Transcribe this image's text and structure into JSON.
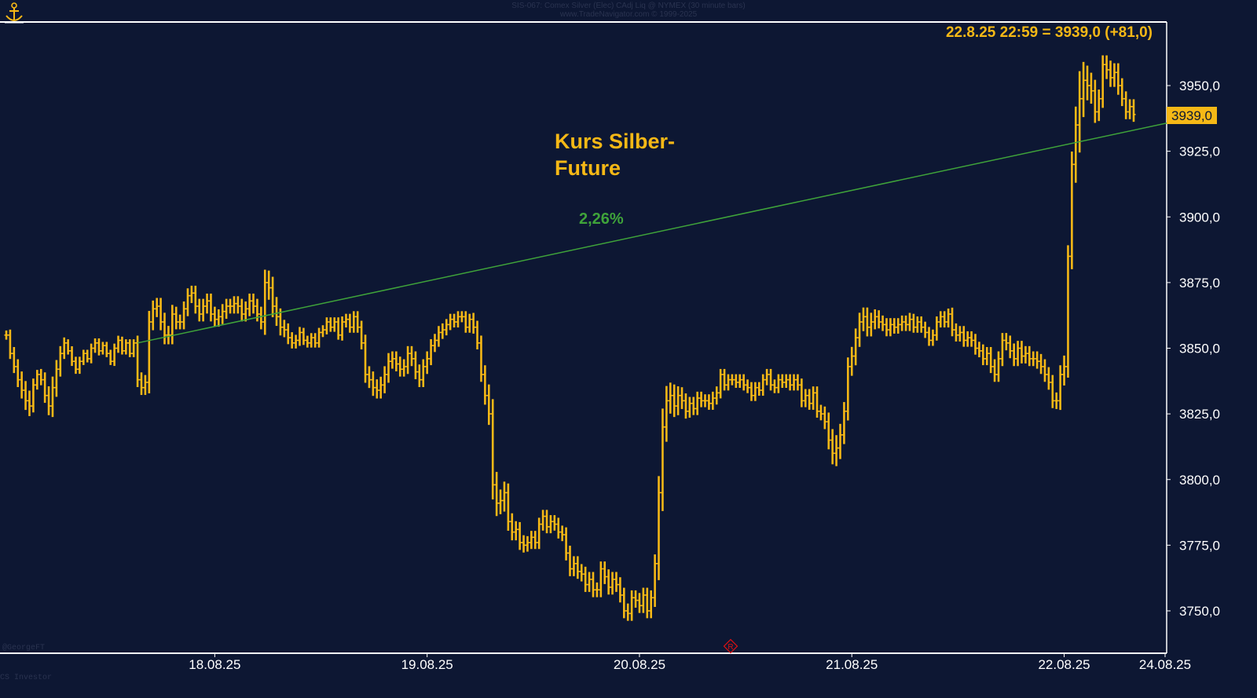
{
  "header": {
    "line1": "SIS-067: Comex Silver (Elec) CAdj Liq @ NYMEX (30 minute bars)",
    "line2": "www.TradeNavigator.com © 1999-2025"
  },
  "footer": {
    "left_top": "@GeorgeFT",
    "left_bottom": "CS Investor"
  },
  "colors": {
    "background": "#0d1733",
    "bars": "#f5b816",
    "trendline": "#3fa33a",
    "axis": "#ffffff",
    "label_box": "#f5b816"
  },
  "icons": [
    "anchor-logo-icon",
    "registered-mark-icon"
  ],
  "chart_data": {
    "type": "ohlc",
    "title": "Kurs Silber-Future",
    "title_lines": [
      "Kurs Silber-",
      "Future"
    ],
    "last_value_text": "22.8.25 22:59 = 3939,0 (+81,0)",
    "last_price_label": "3939,0",
    "trend_label": "2,26%",
    "trendline": {
      "from": {
        "bar": 34,
        "price": 3852
      },
      "to": {
        "bar": 311,
        "price": 3939
      }
    },
    "ylim": [
      3735,
      3975
    ],
    "yticks": [
      "3750,0",
      "3775,0",
      "3800,0",
      "3825,0",
      "3850,0",
      "3875,0",
      "3900,0",
      "3925,0",
      "3950,0"
    ],
    "ytick_values": [
      3750,
      3775,
      3800,
      3825,
      3850,
      3875,
      3900,
      3925,
      3950
    ],
    "xticks": [
      {
        "label": "18.08.25",
        "bar": 54
      },
      {
        "label": "19.08.25",
        "bar": 109
      },
      {
        "label": "20.08.25",
        "bar": 164
      },
      {
        "label": "21.08.25",
        "bar": 219
      },
      {
        "label": "22.08.25",
        "bar": 274
      },
      {
        "label": "24.08.25",
        "bar": 316
      }
    ],
    "xrange_bars": [
      0,
      318
    ],
    "grid": false,
    "series": [
      {
        "bar_width_bars": 1,
        "closes": [
          3855,
          3848,
          3843,
          3838,
          3834,
          3830,
          3828,
          3836,
          3840,
          3838,
          3832,
          3828,
          3835,
          3842,
          3848,
          3852,
          3849,
          3845,
          3842,
          3845,
          3848,
          3846,
          3850,
          3852,
          3849,
          3851,
          3848,
          3845,
          3850,
          3853,
          3849,
          3852,
          3848,
          3852,
          3838,
          3835,
          3837,
          3860,
          3865,
          3866,
          3860,
          3855,
          3855,
          3863,
          3860,
          3860,
          3865,
          3870,
          3871,
          3866,
          3863,
          3866,
          3868,
          3863,
          3861,
          3862,
          3864,
          3866,
          3866,
          3867,
          3866,
          3863,
          3865,
          3868,
          3866,
          3863,
          3860,
          3875,
          3873,
          3866,
          3862,
          3858,
          3857,
          3854,
          3852,
          3853,
          3856,
          3853,
          3852,
          3854,
          3852,
          3856,
          3857,
          3860,
          3858,
          3860,
          3855,
          3860,
          3861,
          3858,
          3862,
          3858,
          3852,
          3840,
          3838,
          3835,
          3834,
          3836,
          3840,
          3845,
          3846,
          3844,
          3842,
          3843,
          3848,
          3846,
          3841,
          3838,
          3843,
          3846,
          3851,
          3853,
          3856,
          3857,
          3859,
          3861,
          3860,
          3862,
          3862,
          3858,
          3861,
          3858,
          3852,
          3840,
          3832,
          3825,
          3798,
          3791,
          3792,
          3795,
          3784,
          3780,
          3781,
          3776,
          3775,
          3776,
          3778,
          3776,
          3783,
          3786,
          3782,
          3784,
          3783,
          3780,
          3779,
          3772,
          3766,
          3768,
          3765,
          3764,
          3760,
          3762,
          3758,
          3758,
          3766,
          3763,
          3759,
          3762,
          3760,
          3756,
          3750,
          3749,
          3755,
          3754,
          3752,
          3756,
          3750,
          3755,
          3768,
          3795,
          3820,
          3830,
          3832,
          3828,
          3832,
          3830,
          3826,
          3829,
          3827,
          3831,
          3830,
          3830,
          3829,
          3831,
          3833,
          3840,
          3836,
          3838,
          3838,
          3837,
          3838,
          3836,
          3835,
          3832,
          3835,
          3834,
          3838,
          3840,
          3836,
          3835,
          3838,
          3837,
          3838,
          3836,
          3838,
          3836,
          3830,
          3832,
          3829,
          3833,
          3826,
          3825,
          3822,
          3815,
          3810,
          3812,
          3817,
          3826,
          3843,
          3847,
          3854,
          3860,
          3862,
          3858,
          3860,
          3862,
          3860,
          3859,
          3857,
          3859,
          3858,
          3859,
          3860,
          3859,
          3861,
          3858,
          3860,
          3858,
          3856,
          3853,
          3855,
          3860,
          3862,
          3860,
          3863,
          3857,
          3855,
          3856,
          3853,
          3854,
          3853,
          3850,
          3849,
          3846,
          3848,
          3843,
          3840,
          3846,
          3853,
          3852,
          3849,
          3846,
          3850,
          3847,
          3848,
          3846,
          3846,
          3845,
          3843,
          3840,
          3837,
          3830,
          3830,
          3840,
          3843,
          3885,
          3920,
          3935,
          3945,
          3952,
          3950,
          3948,
          3940,
          3945,
          3958,
          3956,
          3953,
          3955,
          3950,
          3945,
          3940,
          3942,
          3939
        ],
        "ranges": [
          5,
          6,
          7,
          8,
          9,
          10,
          11,
          7,
          5,
          6,
          8,
          10,
          12,
          10,
          8,
          6,
          4,
          5,
          5,
          5,
          4,
          4,
          5,
          5,
          5,
          4,
          4,
          4,
          5,
          5,
          4,
          4,
          4,
          4,
          8,
          8,
          8,
          12,
          9,
          9,
          9,
          10,
          10,
          10,
          8,
          8,
          8,
          8,
          8,
          8,
          8,
          8,
          8,
          8,
          8,
          8,
          8,
          8,
          8,
          8,
          8,
          8,
          8,
          8,
          8,
          8,
          8,
          14,
          13,
          12,
          10,
          9,
          8,
          7,
          6,
          6,
          6,
          5,
          5,
          5,
          5,
          5,
          5,
          5,
          5,
          5,
          5,
          6,
          6,
          6,
          6,
          6,
          7,
          9,
          9,
          9,
          9,
          9,
          9,
          9,
          8,
          8,
          8,
          8,
          8,
          8,
          8,
          8,
          8,
          8,
          7,
          7,
          7,
          7,
          6,
          6,
          6,
          6,
          6,
          6,
          6,
          7,
          7,
          8,
          10,
          12,
          16,
          14,
          12,
          12,
          10,
          9,
          9,
          8,
          8,
          7,
          7,
          7,
          7,
          7,
          7,
          7,
          7,
          7,
          7,
          8,
          8,
          8,
          8,
          8,
          8,
          8,
          8,
          8,
          8,
          8,
          8,
          8,
          8,
          8,
          8,
          8,
          8,
          8,
          8,
          8,
          8,
          8,
          10,
          18,
          20,
          16,
          14,
          12,
          10,
          9,
          8,
          7,
          7,
          7,
          7,
          7,
          7,
          7,
          7,
          6,
          6,
          6,
          6,
          6,
          6,
          6,
          6,
          6,
          6,
          6,
          6,
          6,
          6,
          6,
          6,
          6,
          6,
          6,
          6,
          6,
          7,
          7,
          7,
          7,
          7,
          7,
          8,
          10,
          12,
          14,
          12,
          10,
          10,
          10,
          10,
          10,
          10,
          10,
          10,
          8,
          7,
          7,
          7,
          7,
          7,
          7,
          7,
          7,
          7,
          6,
          6,
          6,
          6,
          6,
          6,
          6,
          6,
          6,
          6,
          7,
          7,
          7,
          7,
          7,
          7,
          7,
          7,
          7,
          7,
          7,
          8,
          8,
          8,
          8,
          8,
          8,
          8,
          8,
          8,
          8,
          8,
          8,
          8,
          8,
          8,
          8,
          9,
          10,
          12,
          12,
          14,
          20,
          30,
          20,
          16,
          14,
          12,
          10,
          10,
          10,
          10,
          10,
          10,
          8,
          8,
          8,
          8,
          8,
          8,
          8,
          8,
          8
        ]
      }
    ]
  }
}
